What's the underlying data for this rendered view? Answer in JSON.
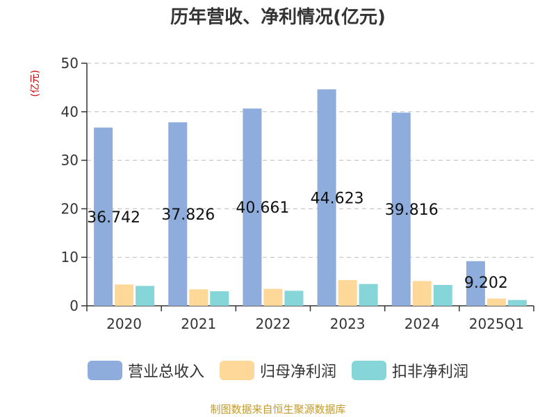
{
  "colors": {
    "revenue": "#8eaddc",
    "net_profit": "#fdd898",
    "deducted_profit": "#86d5d8",
    "unit_text": "#cc0000",
    "source_text": "#c49a2a",
    "axis": "#333333",
    "grid": "#bbbbbb"
  },
  "chart_data": {
    "type": "bar",
    "title": "历年营收、净利情况(亿元)",
    "ylabel": "(亿元)",
    "xlabel": "",
    "categories": [
      "2020",
      "2021",
      "2022",
      "2023",
      "2024",
      "2025Q1"
    ],
    "ylim": [
      0,
      50
    ],
    "yticks": [
      0,
      10,
      20,
      30,
      40,
      50
    ],
    "grid": true,
    "legend_position": "bottom",
    "series": [
      {
        "name": "营业总收入",
        "values": [
          36.742,
          37.826,
          40.661,
          44.623,
          39.816,
          9.202
        ]
      },
      {
        "name": "归母净利润",
        "values": [
          4.4,
          3.4,
          3.5,
          5.3,
          5.1,
          1.5
        ]
      },
      {
        "name": "扣非净利润",
        "values": [
          4.1,
          3.0,
          3.1,
          4.5,
          4.3,
          1.2
        ]
      }
    ],
    "data_labels": [
      "36.742",
      "37.826",
      "40.661",
      "44.623",
      "39.816",
      "9.202"
    ]
  },
  "source_note": "制图数据来自恒生聚源数据库"
}
